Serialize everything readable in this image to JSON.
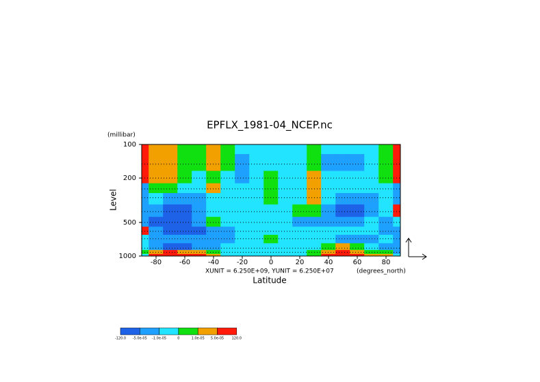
{
  "chart_data": {
    "type": "contour",
    "title": "EPFLX_1981-04_NCEP.nc",
    "y_unit": "(millibar)",
    "y_label": "Level",
    "x_label": "Latitude",
    "x_unit": "(degrees_north)",
    "annotation": "XUNIT = 6.250E+09, YUNIT = 6.250E+07",
    "xlim": [
      -90,
      90
    ],
    "ylim": [
      100,
      1000
    ],
    "y_log": true,
    "xticks": [
      -80,
      -60,
      -40,
      -20,
      0,
      20,
      40,
      60,
      80
    ],
    "yticks": [
      100,
      200,
      500,
      1000
    ],
    "x": [
      -90,
      -80,
      -70,
      -60,
      -50,
      -40,
      -30,
      -20,
      -10,
      0,
      10,
      20,
      30,
      40,
      50,
      60,
      70,
      80,
      90
    ],
    "y": [
      100,
      150,
      200,
      250,
      300,
      400,
      500,
      600,
      700,
      850,
      925,
      1000
    ],
    "field": [
      [
        8e-05,
        3e-05,
        3e-05,
        5e-06,
        5e-06,
        3e-05,
        5e-06,
        -5e-06,
        -5e-06,
        -5e-06,
        -5e-06,
        -5e-06,
        5e-06,
        -5e-06,
        -5e-06,
        -5e-06,
        -5e-06,
        5e-06,
        8e-05
      ],
      [
        8e-05,
        3e-05,
        3e-05,
        5e-06,
        5e-06,
        3e-05,
        5e-06,
        -3e-05,
        -5e-06,
        -5e-06,
        -5e-06,
        -5e-06,
        5e-06,
        -3e-05,
        -3e-05,
        -3e-05,
        -5e-06,
        5e-06,
        8e-05
      ],
      [
        8e-05,
        3e-05,
        3e-05,
        5e-06,
        -5e-06,
        5e-06,
        -5e-06,
        -3e-05,
        -5e-06,
        5e-06,
        -5e-06,
        -5e-06,
        3e-05,
        -5e-06,
        -5e-06,
        -5e-06,
        -5e-06,
        5e-06,
        8e-05
      ],
      [
        -3e-05,
        5e-06,
        5e-06,
        -5e-06,
        -5e-06,
        3e-05,
        -5e-06,
        -5e-06,
        -5e-06,
        5e-06,
        -5e-06,
        -5e-06,
        3e-05,
        -5e-06,
        -5e-06,
        -5e-06,
        -5e-06,
        -5e-06,
        -3e-05
      ],
      [
        -3e-05,
        -5e-06,
        -3e-05,
        -3e-05,
        -3e-05,
        -5e-06,
        -5e-06,
        -5e-06,
        -5e-06,
        5e-06,
        -5e-06,
        -5e-06,
        3e-05,
        -5e-06,
        -3e-05,
        -3e-05,
        -3e-05,
        -5e-06,
        -3e-05
      ],
      [
        -3e-05,
        -3e-05,
        -8e-05,
        -8e-05,
        -3e-05,
        -5e-06,
        -5e-06,
        -5e-06,
        -5e-06,
        -5e-06,
        -5e-06,
        5e-06,
        5e-06,
        -3e-05,
        -8e-05,
        -8e-05,
        -3e-05,
        -5e-06,
        8e-05
      ],
      [
        -3e-05,
        -8e-05,
        -8e-05,
        -8e-05,
        -3e-05,
        5e-06,
        -5e-06,
        -5e-06,
        -5e-06,
        -5e-06,
        -5e-06,
        -3e-05,
        -3e-05,
        -3e-05,
        -3e-05,
        -3e-05,
        -5e-06,
        -3e-05,
        -5e-06
      ],
      [
        8e-05,
        -3e-05,
        -8e-05,
        -8e-05,
        -8e-05,
        -3e-05,
        -3e-05,
        -5e-06,
        -5e-06,
        -5e-06,
        -5e-06,
        -5e-06,
        -5e-06,
        -5e-06,
        -5e-06,
        -5e-06,
        -5e-06,
        -3e-05,
        -3e-05
      ],
      [
        -5e-06,
        -3e-05,
        -3e-05,
        -3e-05,
        -3e-05,
        -3e-05,
        -3e-05,
        -5e-06,
        -5e-06,
        5e-06,
        -5e-06,
        -5e-06,
        -5e-06,
        -5e-06,
        -3e-05,
        -3e-05,
        -3e-05,
        -5e-06,
        -3e-05
      ],
      [
        -5e-06,
        -3e-05,
        -8e-05,
        -8e-05,
        -3e-05,
        -3e-05,
        -5e-06,
        -5e-06,
        -5e-06,
        -5e-06,
        -5e-06,
        -5e-06,
        -5e-06,
        5e-06,
        3e-05,
        5e-06,
        -5e-06,
        -3e-05,
        -3e-05
      ],
      [
        5e-06,
        3e-05,
        8e-05,
        3e-05,
        3e-05,
        5e-06,
        -5e-06,
        -5e-06,
        -5e-06,
        -5e-06,
        -5e-06,
        -5e-06,
        5e-06,
        3e-05,
        8e-05,
        3e-05,
        5e-06,
        5e-06,
        -3e-05
      ],
      [
        -5e-06,
        8e-05,
        8e-05,
        8e-05,
        8e-05,
        3e-05,
        -5e-06,
        -5e-06,
        -5e-06,
        -5e-06,
        -5e-06,
        -5e-06,
        5e-06,
        8e-05,
        8e-05,
        8e-05,
        3e-05,
        3e-05,
        -5e-06
      ]
    ],
    "levels": [
      {
        "value": -120,
        "label": "-120.0"
      },
      {
        "value": -5e-05,
        "label": "-5.0e-05"
      },
      {
        "value": -1e-05,
        "label": "-1.0e-05"
      },
      0,
      {
        "value": 1e-05,
        "label": "1.0e-05"
      },
      {
        "value": 5e-05,
        "label": "5.0e-05"
      },
      {
        "value": 120,
        "label": "120.0"
      }
    ],
    "colors": [
      "#1e62e8",
      "#1ea0ff",
      "#22e4ff",
      "#10e010",
      "#f2a000",
      "#ff1a0a"
    ]
  }
}
